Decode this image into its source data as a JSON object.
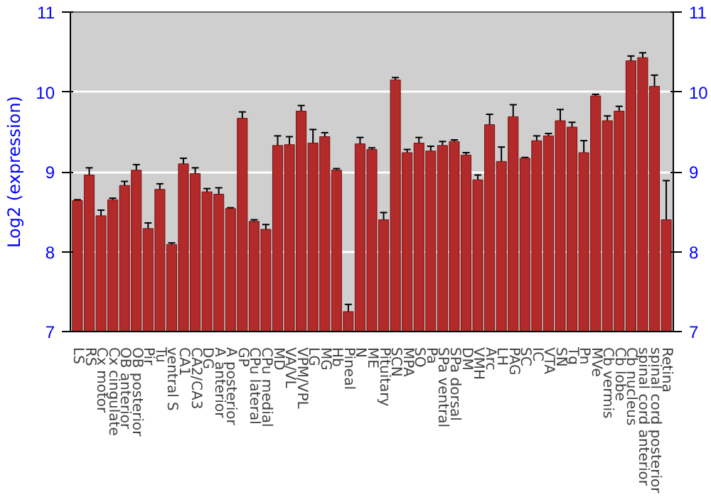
{
  "chart_data": {
    "type": "bar",
    "ylabel": "Log2 (expression)",
    "categories": [
      "LS",
      "RS",
      "Cx motor",
      "Cx cingulate",
      "OB anterior",
      "OB posterior",
      "Pir",
      "Tu",
      "ventral S",
      "CA1",
      "CA2/CA3",
      "DG",
      "A anterior",
      "A posterior",
      "GP",
      "CPu lateral",
      "CPu medial",
      "MD",
      "VA/VL",
      "VPM/VPL",
      "LG",
      "MG",
      "Hb",
      "Pineal",
      "N",
      "ME",
      "Pituitary",
      "SCN",
      "MPA",
      "SO",
      "Pa",
      "SPa ventral",
      "SPa dorsal",
      "DM",
      "VMH",
      "Arc",
      "LH",
      "PAG",
      "SC",
      "IC",
      "VTA",
      "SN",
      "Tg",
      "Pn",
      "MVe",
      "Cb vermis",
      "Cb lobe",
      "Cb nucleus",
      "spinal cord anterior",
      "spinal cord posterior",
      "Retina"
    ],
    "values": [
      8.64,
      8.96,
      8.45,
      8.65,
      8.83,
      9.02,
      8.29,
      8.78,
      8.09,
      9.1,
      8.98,
      8.75,
      8.72,
      8.54,
      9.67,
      8.38,
      8.28,
      9.33,
      9.34,
      9.76,
      9.36,
      9.44,
      9.02,
      7.25,
      9.35,
      9.28,
      8.4,
      10.15,
      9.24,
      9.36,
      9.26,
      9.33,
      9.38,
      9.21,
      8.9,
      9.59,
      9.13,
      9.69,
      9.17,
      9.39,
      9.45,
      9.64,
      9.56,
      9.24,
      9.95,
      9.64,
      9.76,
      10.39,
      10.43,
      10.07,
      8.4
    ],
    "errors": [
      0.01,
      0.09,
      0.07,
      0.02,
      0.05,
      0.07,
      0.07,
      0.07,
      0.02,
      0.07,
      0.07,
      0.04,
      0.08,
      0.01,
      0.08,
      0.02,
      0.06,
      0.12,
      0.1,
      0.07,
      0.17,
      0.05,
      0.02,
      0.09,
      0.08,
      0.02,
      0.09,
      0.03,
      0.04,
      0.07,
      0.06,
      0.05,
      0.02,
      0.03,
      0.06,
      0.13,
      0.18,
      0.15,
      0.01,
      0.06,
      0.03,
      0.14,
      0.06,
      0.15,
      0.02,
      0.06,
      0.06,
      0.06,
      0.06,
      0.14,
      0.49
    ],
    "color": "#b22a2a",
    "ylim": [
      7,
      11
    ],
    "yticks": [
      7,
      8,
      9,
      10,
      11
    ],
    "y2lim": [
      7,
      11
    ],
    "y2ticks": [
      7,
      8,
      9,
      10,
      11
    ],
    "grid": "y"
  }
}
